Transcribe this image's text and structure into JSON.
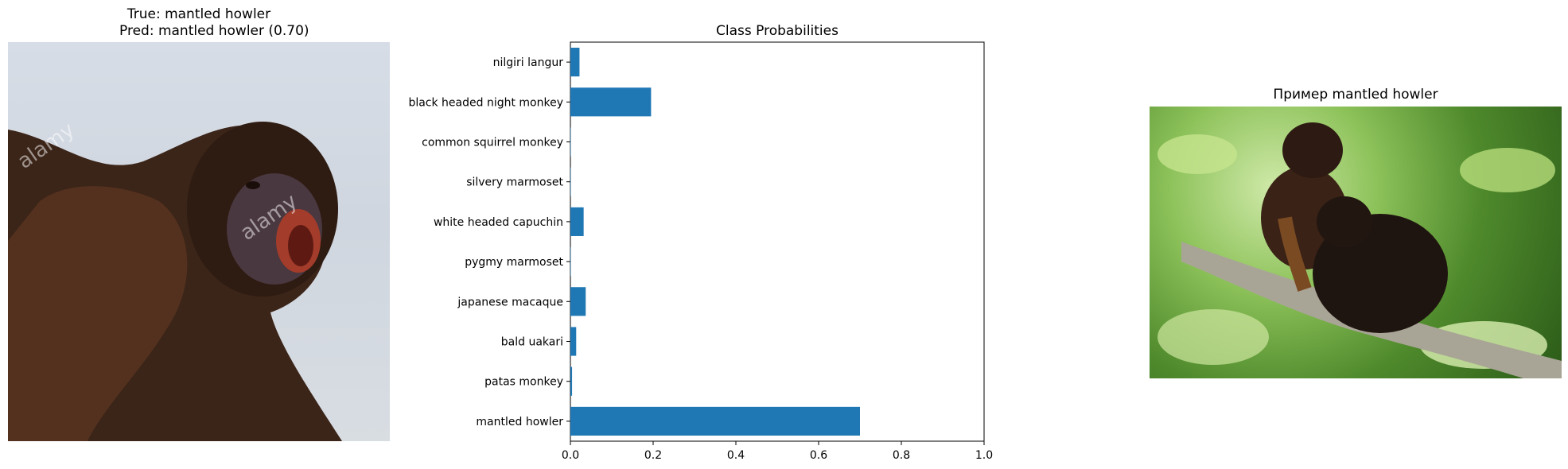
{
  "left_panel": {
    "title_line1": "True: mantled howler",
    "title_line2": "Pred: mantled howler (0.70)",
    "image_subject": "mantled howler monkey howling",
    "watermark": "alamy"
  },
  "right_panel": {
    "title": "Пример mantled howler",
    "image_subject": "two mantled howler monkeys on a branch"
  },
  "colors": {
    "bar": "#1f77b4"
  },
  "chart_data": {
    "type": "bar",
    "orientation": "horizontal",
    "title": "Class Probabilities",
    "xlabel": "",
    "ylabel": "",
    "xlim": [
      0,
      1.0
    ],
    "xticks": [
      "0.0",
      "0.2",
      "0.4",
      "0.6",
      "0.8",
      "1.0"
    ],
    "grid": false,
    "categories": [
      "nilgiri langur",
      "black headed night monkey",
      "common squirrel monkey",
      "silvery marmoset",
      "white headed capuchin",
      "pygmy marmoset",
      "japanese macaque",
      "bald uakari",
      "patas monkey",
      "mantled howler"
    ],
    "values": [
      0.022,
      0.195,
      0.001,
      0.001,
      0.032,
      0.001,
      0.037,
      0.014,
      0.004,
      0.7
    ]
  }
}
